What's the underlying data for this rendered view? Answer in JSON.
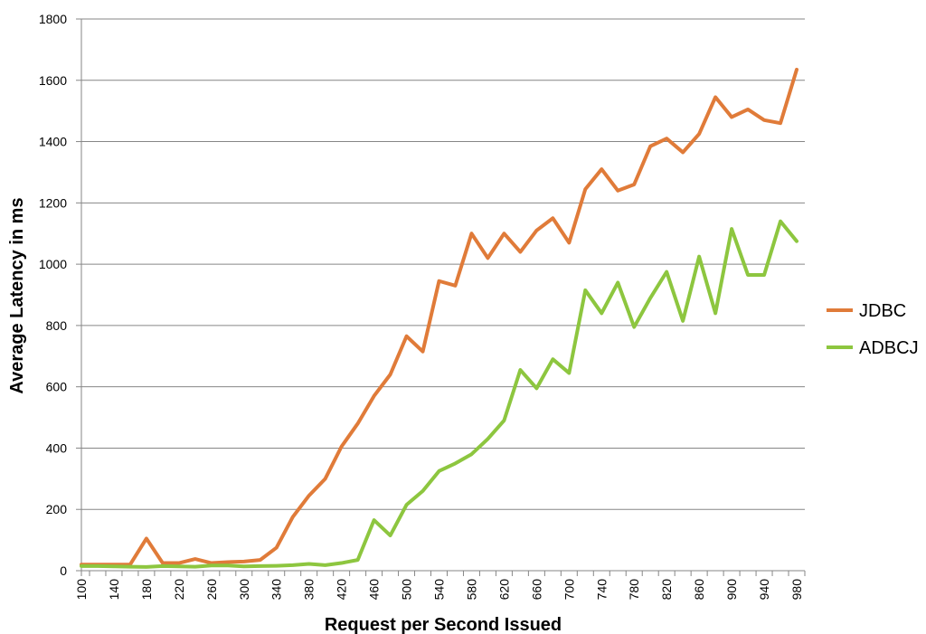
{
  "chart_data": {
    "type": "line",
    "title": "",
    "xlabel": "Request per Second Issued",
    "ylabel": "Average Latency in ms",
    "ylim": [
      0,
      1800
    ],
    "yticks": [
      0,
      200,
      400,
      600,
      800,
      1000,
      1200,
      1400,
      1600,
      1800
    ],
    "xticks": [
      100,
      140,
      180,
      220,
      260,
      300,
      340,
      380,
      420,
      460,
      500,
      540,
      580,
      620,
      660,
      700,
      740,
      780,
      820,
      860,
      900,
      940,
      980
    ],
    "grid": "horizontal",
    "legend": "right",
    "x": [
      100,
      120,
      140,
      160,
      180,
      200,
      220,
      240,
      260,
      280,
      300,
      320,
      340,
      360,
      380,
      400,
      420,
      440,
      460,
      480,
      500,
      520,
      540,
      560,
      580,
      600,
      620,
      640,
      660,
      680,
      700,
      720,
      740,
      760,
      780,
      800,
      820,
      840,
      860,
      880,
      900,
      920,
      940,
      960,
      980
    ],
    "series": [
      {
        "name": "JDBC",
        "color": "#E07B39",
        "values": [
          20,
          20,
          20,
          20,
          105,
          25,
          25,
          38,
          25,
          28,
          30,
          35,
          75,
          175,
          245,
          300,
          405,
          480,
          570,
          640,
          765,
          715,
          945,
          930,
          1100,
          1020,
          1100,
          1040,
          1110,
          1150,
          1070,
          1245,
          1310,
          1240,
          1260,
          1385,
          1410,
          1365,
          1425,
          1545,
          1480,
          1505,
          1470,
          1460,
          1635
        ]
      },
      {
        "name": "ADBCJ",
        "color": "#8DC63F",
        "values": [
          15,
          15,
          14,
          13,
          12,
          15,
          14,
          13,
          17,
          17,
          14,
          15,
          16,
          18,
          22,
          18,
          25,
          35,
          165,
          115,
          215,
          260,
          325,
          350,
          380,
          430,
          490,
          655,
          595,
          690,
          645,
          915,
          840,
          940,
          795,
          890,
          975,
          815,
          1025,
          840,
          1115,
          965,
          965,
          1140,
          1075
        ]
      }
    ]
  }
}
